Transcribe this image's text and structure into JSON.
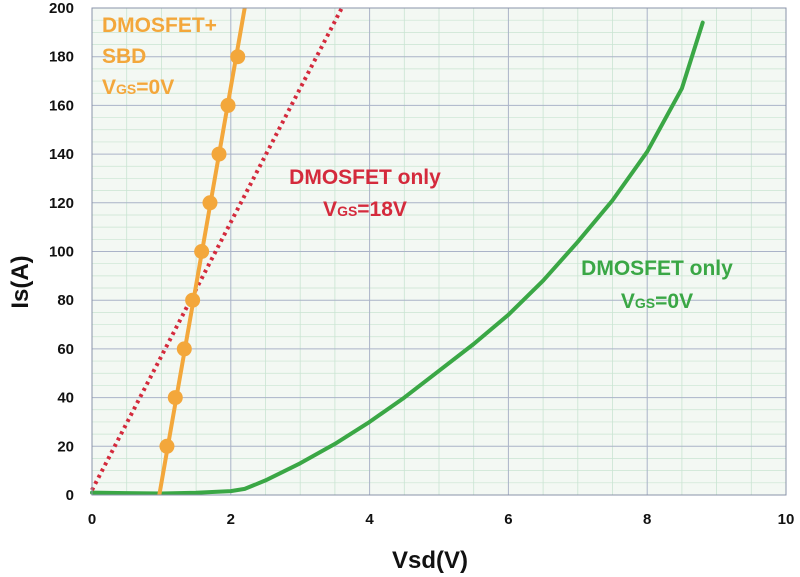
{
  "chart_data": {
    "type": "line",
    "xlabel": "Vsd(V)",
    "ylabel": "Is(A)",
    "xlim": [
      0,
      10
    ],
    "ylim": [
      0,
      200
    ],
    "x_ticks": [
      "0",
      "2",
      "4",
      "6",
      "8",
      "10"
    ],
    "y_ticks": [
      "0",
      "20",
      "40",
      "60",
      "80",
      "100",
      "120",
      "140",
      "160",
      "180",
      "200"
    ],
    "grid": true,
    "colors": {
      "sbd": "#f3a73b",
      "mosfet18": "#d42a3c",
      "mosfet0": "#3aa745",
      "grid_major": "#aab3c8",
      "grid_minor": "#c9e4d2",
      "background": "#f3f8f3"
    },
    "series": [
      {
        "name": "DMOSFET+ SBD VGS=0V",
        "style": "solid-with-markers",
        "line": [
          [
            0.97,
            0
          ],
          [
            2.2,
            200
          ]
        ],
        "markers": [
          [
            1.08,
            20
          ],
          [
            1.2,
            40
          ],
          [
            1.33,
            60
          ],
          [
            1.45,
            80
          ],
          [
            1.58,
            100
          ],
          [
            1.7,
            120
          ],
          [
            1.83,
            140
          ],
          [
            1.96,
            160
          ],
          [
            2.1,
            180
          ]
        ]
      },
      {
        "name": "DMOSFET only VGS=18V",
        "style": "dotted",
        "points": [
          [
            0,
            2
          ],
          [
            3.6,
            200
          ]
        ]
      },
      {
        "name": "DMOSFET only VGS=0V",
        "style": "solid",
        "points": [
          [
            0,
            1
          ],
          [
            0.5,
            0.8
          ],
          [
            1,
            0.6
          ],
          [
            1.5,
            0.9
          ],
          [
            2.0,
            1.6
          ],
          [
            2.2,
            2.5
          ],
          [
            2.5,
            6
          ],
          [
            3.0,
            13
          ],
          [
            3.5,
            21
          ],
          [
            4.0,
            30
          ],
          [
            4.5,
            40
          ],
          [
            5.0,
            51
          ],
          [
            5.5,
            62
          ],
          [
            6.0,
            74
          ],
          [
            6.5,
            88
          ],
          [
            7.0,
            104
          ],
          [
            7.5,
            121
          ],
          [
            8.0,
            141
          ],
          [
            8.5,
            167
          ],
          [
            8.8,
            194
          ]
        ]
      }
    ],
    "annotations": [
      {
        "series": 0,
        "lines": [
          "DMOSFET+",
          "SBD"
        ],
        "v": "V",
        "sub": "GS",
        "rest": "=0V"
      },
      {
        "series": 1,
        "lines": [
          "DMOSFET only"
        ],
        "v": "V",
        "sub": "GS",
        "rest": "=18V"
      },
      {
        "series": 2,
        "lines": [
          "DMOSFET only"
        ],
        "v": "V",
        "sub": "GS",
        "rest": "=0V"
      }
    ]
  }
}
